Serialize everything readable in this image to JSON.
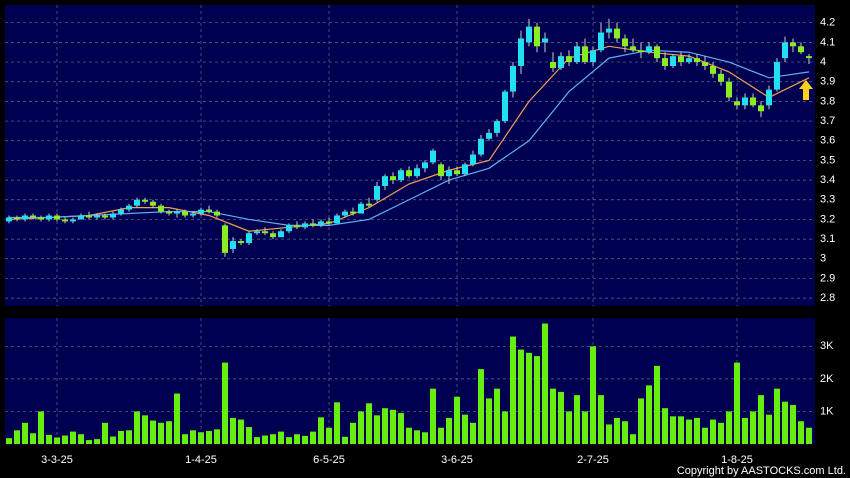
{
  "chart_data": {
    "type": "candlestick",
    "up_color": "#22e0f0",
    "down_color": "#88ee22",
    "volume_color": "#66ee11",
    "grid": true,
    "ylim": [
      2.76,
      4.29
    ],
    "yticks": [
      2.8,
      2.9,
      3,
      3.1,
      3.2,
      3.3,
      3.4,
      3.5,
      3.6,
      3.7,
      3.8,
      3.9,
      4,
      4.1,
      4.2
    ],
    "xticks": [
      {
        "value": 6,
        "label": "3-3-25"
      },
      {
        "value": 24,
        "label": "1-4-25"
      },
      {
        "value": 40,
        "label": "6-5-25"
      },
      {
        "value": 56,
        "label": "3-6-25"
      },
      {
        "value": 73,
        "label": "2-7-25"
      },
      {
        "value": 91,
        "label": "1-8-25"
      }
    ],
    "ohlc": [
      [
        3.19,
        3.22,
        3.18,
        3.21
      ],
      [
        3.21,
        3.22,
        3.19,
        3.2
      ],
      [
        3.2,
        3.23,
        3.19,
        3.22
      ],
      [
        3.22,
        3.23,
        3.2,
        3.21
      ],
      [
        3.21,
        3.22,
        3.19,
        3.2
      ],
      [
        3.2,
        3.23,
        3.19,
        3.22
      ],
      [
        3.22,
        3.23,
        3.19,
        3.2
      ],
      [
        3.2,
        3.21,
        3.18,
        3.19
      ],
      [
        3.19,
        3.21,
        3.18,
        3.2
      ],
      [
        3.2,
        3.23,
        3.2,
        3.22
      ],
      [
        3.22,
        3.24,
        3.2,
        3.21
      ],
      [
        3.21,
        3.23,
        3.2,
        3.22
      ],
      [
        3.22,
        3.23,
        3.2,
        3.21
      ],
      [
        3.21,
        3.24,
        3.2,
        3.23
      ],
      [
        3.23,
        3.26,
        3.22,
        3.25
      ],
      [
        3.25,
        3.28,
        3.24,
        3.27
      ],
      [
        3.27,
        3.31,
        3.26,
        3.3
      ],
      [
        3.3,
        3.31,
        3.28,
        3.29
      ],
      [
        3.29,
        3.3,
        3.26,
        3.27
      ],
      [
        3.27,
        3.28,
        3.23,
        3.24
      ],
      [
        3.24,
        3.25,
        3.22,
        3.23
      ],
      [
        3.23,
        3.25,
        3.21,
        3.24
      ],
      [
        3.24,
        3.25,
        3.21,
        3.22
      ],
      [
        3.22,
        3.24,
        3.21,
        3.23
      ],
      [
        3.23,
        3.26,
        3.22,
        3.25
      ],
      [
        3.25,
        3.27,
        3.23,
        3.24
      ],
      [
        3.24,
        3.25,
        3.21,
        3.22
      ],
      [
        3.17,
        3.18,
        3.01,
        3.03
      ],
      [
        3.05,
        3.11,
        3.03,
        3.09
      ],
      [
        3.09,
        3.1,
        3.07,
        3.08
      ],
      [
        3.08,
        3.14,
        3.07,
        3.13
      ],
      [
        3.13,
        3.15,
        3.12,
        3.14
      ],
      [
        3.14,
        3.16,
        3.12,
        3.13
      ],
      [
        3.13,
        3.14,
        3.1,
        3.11
      ],
      [
        3.11,
        3.15,
        3.11,
        3.14
      ],
      [
        3.14,
        3.18,
        3.13,
        3.17
      ],
      [
        3.17,
        3.19,
        3.15,
        3.16
      ],
      [
        3.16,
        3.19,
        3.15,
        3.18
      ],
      [
        3.18,
        3.2,
        3.16,
        3.17
      ],
      [
        3.17,
        3.2,
        3.16,
        3.19
      ],
      [
        3.19,
        3.21,
        3.17,
        3.18
      ],
      [
        3.18,
        3.23,
        3.18,
        3.22
      ],
      [
        3.22,
        3.25,
        3.21,
        3.24
      ],
      [
        3.24,
        3.26,
        3.22,
        3.23
      ],
      [
        3.23,
        3.29,
        3.23,
        3.28
      ],
      [
        3.28,
        3.31,
        3.26,
        3.27
      ],
      [
        3.3,
        3.39,
        3.29,
        3.37
      ],
      [
        3.37,
        3.43,
        3.35,
        3.42
      ],
      [
        3.42,
        3.44,
        3.38,
        3.4
      ],
      [
        3.4,
        3.46,
        3.39,
        3.45
      ],
      [
        3.45,
        3.47,
        3.41,
        3.42
      ],
      [
        3.42,
        3.48,
        3.41,
        3.46
      ],
      [
        3.46,
        3.5,
        3.44,
        3.49
      ],
      [
        3.49,
        3.56,
        3.48,
        3.55
      ],
      [
        3.48,
        3.49,
        3.4,
        3.42
      ],
      [
        3.42,
        3.47,
        3.38,
        3.45
      ],
      [
        3.45,
        3.47,
        3.42,
        3.43
      ],
      [
        3.43,
        3.49,
        3.42,
        3.48
      ],
      [
        3.48,
        3.55,
        3.47,
        3.53
      ],
      [
        3.53,
        3.63,
        3.52,
        3.61
      ],
      [
        3.61,
        3.66,
        3.6,
        3.64
      ],
      [
        3.64,
        3.71,
        3.62,
        3.7
      ],
      [
        3.7,
        3.86,
        3.69,
        3.85
      ],
      [
        3.85,
        4.0,
        3.82,
        3.98
      ],
      [
        3.98,
        4.16,
        3.94,
        4.12
      ],
      [
        4.1,
        4.22,
        4.08,
        4.18
      ],
      [
        4.18,
        4.2,
        4.05,
        4.08
      ],
      [
        4.1,
        4.15,
        4.05,
        4.12
      ],
      [
        4.0,
        4.05,
        3.95,
        3.97
      ],
      [
        3.97,
        4.05,
        3.96,
        4.03
      ],
      [
        4.03,
        4.06,
        3.98,
        4.0
      ],
      [
        4.0,
        4.1,
        3.99,
        4.08
      ],
      [
        4.08,
        4.12,
        3.99,
        4.0
      ],
      [
        4.0,
        4.08,
        3.98,
        4.06
      ],
      [
        4.06,
        4.2,
        4.05,
        4.15
      ],
      [
        4.15,
        4.22,
        4.12,
        4.17
      ],
      [
        4.17,
        4.2,
        4.1,
        4.12
      ],
      [
        4.12,
        4.14,
        4.05,
        4.08
      ],
      [
        4.08,
        4.12,
        4.05,
        4.06
      ],
      [
        4.06,
        4.1,
        4.02,
        4.05
      ],
      [
        4.05,
        4.1,
        4.04,
        4.08
      ],
      [
        4.08,
        4.09,
        4.0,
        4.02
      ],
      [
        4.02,
        4.05,
        3.96,
        3.98
      ],
      [
        3.98,
        4.04,
        3.97,
        4.03
      ],
      [
        4.03,
        4.05,
        3.98,
        4.0
      ],
      [
        4.0,
        4.04,
        3.99,
        4.02
      ],
      [
        4.02,
        4.04,
        3.98,
        4.0
      ],
      [
        4.0,
        4.03,
        3.96,
        3.98
      ],
      [
        3.98,
        4.0,
        3.92,
        3.94
      ],
      [
        3.94,
        3.96,
        3.88,
        3.9
      ],
      [
        3.9,
        3.92,
        3.8,
        3.82
      ],
      [
        3.8,
        3.82,
        3.76,
        3.78
      ],
      [
        3.78,
        3.84,
        3.76,
        3.82
      ],
      [
        3.82,
        3.84,
        3.77,
        3.78
      ],
      [
        3.78,
        3.8,
        3.72,
        3.75
      ],
      [
        3.78,
        3.88,
        3.76,
        3.86
      ],
      [
        3.86,
        4.02,
        3.85,
        4.0
      ],
      [
        4.02,
        4.13,
        4.0,
        4.1
      ],
      [
        4.1,
        4.12,
        4.05,
        4.08
      ],
      [
        4.08,
        4.1,
        4.04,
        4.05
      ],
      [
        4.03,
        4.04,
        3.99,
        4.02
      ]
    ],
    "moving_averages": [
      {
        "color": "#f0a050",
        "x": [
          0,
          5,
          10,
          15,
          20,
          25,
          30,
          35,
          40,
          45,
          50,
          55,
          60,
          65,
          70,
          75,
          80,
          85,
          90,
          95,
          100
        ],
        "values": [
          3.2,
          3.21,
          3.22,
          3.26,
          3.26,
          3.22,
          3.14,
          3.16,
          3.18,
          3.26,
          3.38,
          3.45,
          3.5,
          3.8,
          4.02,
          4.08,
          4.05,
          4.03,
          3.95,
          3.82,
          3.92
        ]
      },
      {
        "color": "#60b0f0",
        "x": [
          0,
          5,
          10,
          15,
          20,
          25,
          30,
          35,
          40,
          45,
          50,
          55,
          60,
          65,
          70,
          75,
          80,
          85,
          90,
          95,
          100
        ],
        "values": [
          3.21,
          3.21,
          3.22,
          3.23,
          3.24,
          3.24,
          3.2,
          3.17,
          3.17,
          3.2,
          3.3,
          3.4,
          3.46,
          3.6,
          3.85,
          4.02,
          4.06,
          4.05,
          4.0,
          3.92,
          3.95
        ]
      }
    ],
    "volume": [
      180,
      420,
      650,
      330,
      1000,
      280,
      200,
      260,
      380,
      300,
      120,
      150,
      650,
      230,
      400,
      420,
      1000,
      880,
      720,
      650,
      700,
      1550,
      300,
      420,
      360,
      400,
      450,
      2500,
      800,
      750,
      520,
      210,
      260,
      300,
      380,
      210,
      300,
      250,
      380,
      820,
      500,
      1280,
      220,
      650,
      1000,
      1250,
      880,
      1100,
      1050,
      950,
      500,
      420,
      360,
      1700,
      500,
      800,
      1450,
      900,
      650,
      2300,
      1400,
      1700,
      1000,
      3300,
      2900,
      2800,
      2700,
      3700,
      1700,
      1600,
      1000,
      1500,
      1000,
      3000,
      1500,
      600,
      800,
      700,
      300,
      1400,
      1800,
      2400,
      1100,
      850,
      850,
      750,
      800,
      500,
      750,
      650,
      1000,
      2500,
      800,
      1000,
      1500,
      900,
      1700,
      1300,
      1200,
      700,
      500
    ],
    "volume_ylim": [
      0,
      3870
    ],
    "volume_yticks": [
      {
        "value": 1000,
        "label": "1K"
      },
      {
        "value": 2000,
        "label": "2K"
      },
      {
        "value": 3000,
        "label": "3K"
      }
    ],
    "footer": "Copyright by AASTOCKS.com Ltd."
  }
}
